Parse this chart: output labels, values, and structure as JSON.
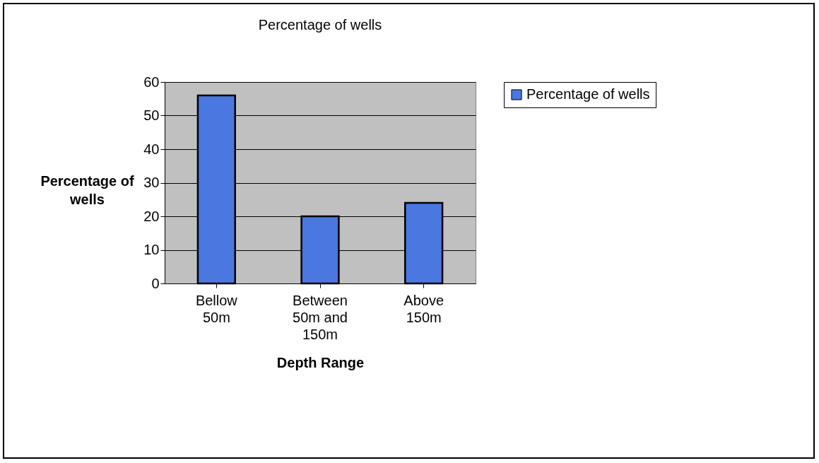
{
  "chart_data": {
    "type": "bar",
    "title": "Percentage of wells",
    "xlabel": "Depth Range",
    "ylabel": "Percentage of wells",
    "categories": [
      "Bellow 50m",
      "Between 50m and 150m",
      "Above 150m"
    ],
    "series": [
      {
        "name": "Percentage of wells",
        "color": "#4a78e0",
        "values": [
          56,
          20,
          24
        ]
      }
    ],
    "ylim": [
      0,
      60
    ],
    "yticks": [
      0,
      10,
      20,
      30,
      40,
      50,
      60
    ],
    "grid": "y",
    "legend": "right"
  }
}
